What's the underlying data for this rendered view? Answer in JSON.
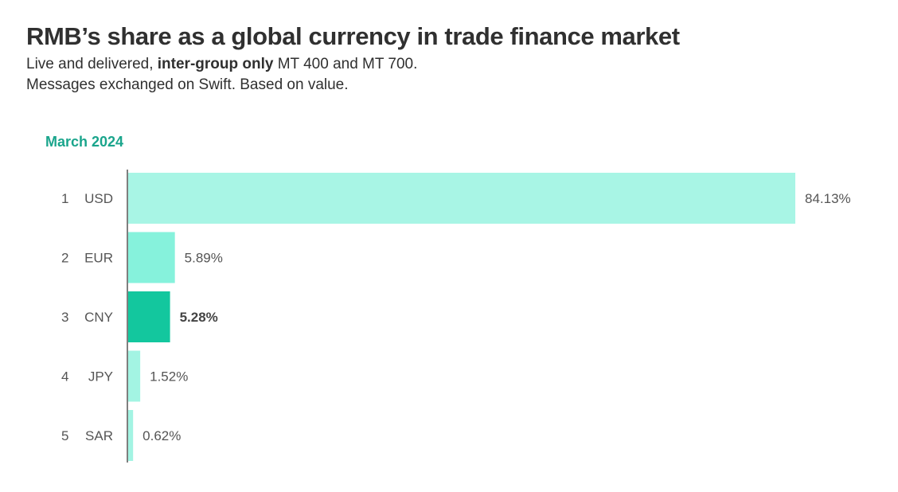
{
  "title": "RMB’s share as a global currency in trade finance market",
  "subtitle": {
    "line1_prefix": "Live and delivered, ",
    "line1_bold": "inter-group only",
    "line1_suffix": " MT 400 and MT 700.",
    "line2": "Messages exchanged on Swift. Based on value."
  },
  "period_label": "March 2024",
  "chart_data": {
    "type": "bar",
    "orientation": "horizontal",
    "ranks": [
      "1",
      "2",
      "3",
      "4",
      "5"
    ],
    "categories": [
      "USD",
      "EUR",
      "CNY",
      "JPY",
      "SAR"
    ],
    "values": [
      84.13,
      5.89,
      5.28,
      1.52,
      0.62
    ],
    "value_labels": [
      "84.13%",
      "5.89%",
      "5.28%",
      "1.52%",
      "0.62%"
    ],
    "highlight": "CNY",
    "colors": {
      "USD": "#a8f5e5",
      "EUR": "#86f2dc",
      "CNY": "#13c79e",
      "JPY": "#a3f4e3",
      "SAR": "#a3f4e3",
      "axis": "#555555",
      "label": "#555555",
      "highlight_label": "#444444"
    },
    "xlim": [
      0,
      84.13
    ],
    "grid": false,
    "legend": "none"
  }
}
